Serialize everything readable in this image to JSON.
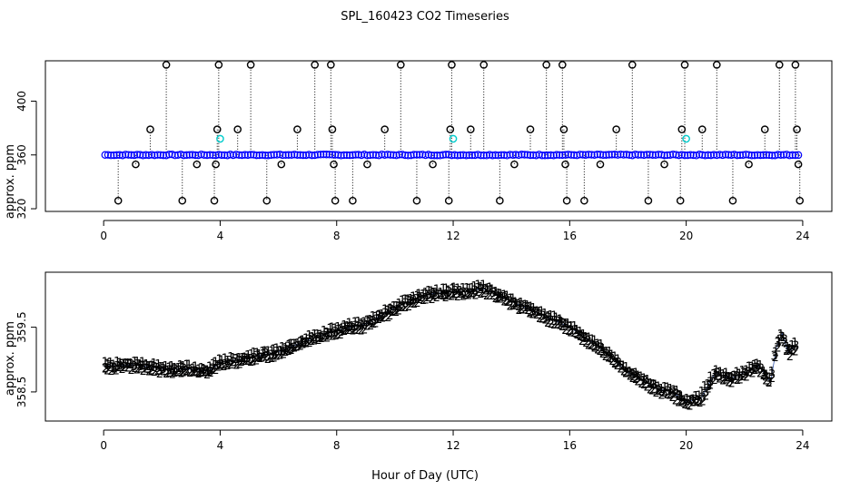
{
  "title": "SPL_160423  CO2 Timeseries",
  "xlabel": "Hour of Day (UTC)",
  "chart_data": [
    {
      "type": "scatter",
      "panel": "top",
      "ylabel": "approx. ppm",
      "xlim": [
        -2,
        25
      ],
      "ylim": [
        318,
        430
      ],
      "xticks": [
        0,
        4,
        8,
        12,
        16,
        20,
        24
      ],
      "yticks": [
        320,
        360,
        400
      ],
      "baseline": 360.0,
      "series": [
        {
          "name": "raw (blue circles)",
          "color": "#0000ff",
          "x_start": 0.05,
          "x_end": 23.85,
          "step": 0.1,
          "gap_x": [
            0.0,
            0.3,
            1.1,
            2.1,
            3.9,
            4.0,
            5.0,
            8.0,
            10.2,
            12.0,
            13.0,
            15.8,
            16.1,
            18.1,
            20.0,
            21.2,
            24.0
          ]
        },
        {
          "name": "outliers (black circles, dotted drop lines)",
          "color": "#000000",
          "points": [
            [
              0.5,
              326
            ],
            [
              1.1,
              353
            ],
            [
              1.6,
              379
            ],
            [
              2.15,
              427
            ],
            [
              2.7,
              326
            ],
            [
              3.2,
              353
            ],
            [
              3.8,
              326
            ],
            [
              3.85,
              353
            ],
            [
              3.9,
              379
            ],
            [
              3.95,
              427
            ],
            [
              4.6,
              379
            ],
            [
              5.05,
              427
            ],
            [
              5.6,
              326
            ],
            [
              6.1,
              353
            ],
            [
              6.65,
              379
            ],
            [
              7.25,
              427
            ],
            [
              7.8,
              427
            ],
            [
              7.85,
              379
            ],
            [
              7.9,
              353
            ],
            [
              7.95,
              326
            ],
            [
              8.55,
              326
            ],
            [
              9.05,
              353
            ],
            [
              9.65,
              379
            ],
            [
              10.2,
              427
            ],
            [
              10.75,
              326
            ],
            [
              11.3,
              353
            ],
            [
              11.85,
              326
            ],
            [
              11.9,
              379
            ],
            [
              11.95,
              427
            ],
            [
              12.6,
              379
            ],
            [
              13.05,
              427
            ],
            [
              13.6,
              326
            ],
            [
              14.1,
              353
            ],
            [
              14.65,
              379
            ],
            [
              15.2,
              427
            ],
            [
              15.75,
              427
            ],
            [
              15.8,
              379
            ],
            [
              15.85,
              353
            ],
            [
              15.9,
              326
            ],
            [
              16.5,
              326
            ],
            [
              17.05,
              353
            ],
            [
              17.6,
              379
            ],
            [
              18.15,
              427
            ],
            [
              18.7,
              326
            ],
            [
              19.25,
              353
            ],
            [
              19.8,
              326
            ],
            [
              19.85,
              379
            ],
            [
              19.95,
              427
            ],
            [
              20.55,
              379
            ],
            [
              21.05,
              427
            ],
            [
              21.6,
              326
            ],
            [
              22.15,
              353
            ],
            [
              22.7,
              379
            ],
            [
              23.2,
              427
            ],
            [
              23.75,
              427
            ],
            [
              23.8,
              379
            ],
            [
              23.85,
              353
            ],
            [
              23.9,
              326
            ]
          ]
        },
        {
          "name": "flagged (cyan circles)",
          "color": "#00cccc",
          "points": [
            [
              4.0,
              372
            ],
            [
              12.0,
              372
            ],
            [
              20.0,
              372
            ]
          ]
        }
      ]
    },
    {
      "type": "scatter",
      "panel": "bottom",
      "ylabel": "approx. ppm",
      "xlim": [
        -2,
        25
      ],
      "ylim": [
        358.05,
        360.35
      ],
      "xticks": [
        0,
        4,
        8,
        12,
        16,
        20,
        24
      ],
      "yticks": [
        358.5,
        359.5
      ],
      "marker_labels": [
        "1",
        "2",
        "3"
      ],
      "series_colors": {
        "1": "#ff0000",
        "2": "#00cc00",
        "3": "#0000ff"
      },
      "mean_trace": [
        [
          0.0,
          358.9
        ],
        [
          1.0,
          358.92
        ],
        [
          2.0,
          358.86
        ],
        [
          3.0,
          358.85
        ],
        [
          3.6,
          358.82
        ],
        [
          4.0,
          358.95
        ],
        [
          5.0,
          359.03
        ],
        [
          6.0,
          359.12
        ],
        [
          7.0,
          359.3
        ],
        [
          8.0,
          359.45
        ],
        [
          9.0,
          359.55
        ],
        [
          10.0,
          359.8
        ],
        [
          11.0,
          360.0
        ],
        [
          12.0,
          360.05
        ],
        [
          12.5,
          360.05
        ],
        [
          13.0,
          360.1
        ],
        [
          14.0,
          359.9
        ],
        [
          15.0,
          359.7
        ],
        [
          16.0,
          359.5
        ],
        [
          17.0,
          359.2
        ],
        [
          17.5,
          359.0
        ],
        [
          18.0,
          358.8
        ],
        [
          19.0,
          358.55
        ],
        [
          19.5,
          358.5
        ],
        [
          20.0,
          358.35
        ],
        [
          20.5,
          358.4
        ],
        [
          21.0,
          358.8
        ],
        [
          21.5,
          358.7
        ],
        [
          22.0,
          358.8
        ],
        [
          22.5,
          358.9
        ],
        [
          22.9,
          358.65
        ],
        [
          23.1,
          359.2
        ],
        [
          23.3,
          359.4
        ],
        [
          23.5,
          359.1
        ],
        [
          23.7,
          359.2
        ]
      ],
      "x_start": 0.05,
      "x_end": 23.75,
      "step": 0.1,
      "label_offsets": {
        "1": 0.045,
        "2": -0.045,
        "3": 0.0
      }
    }
  ]
}
